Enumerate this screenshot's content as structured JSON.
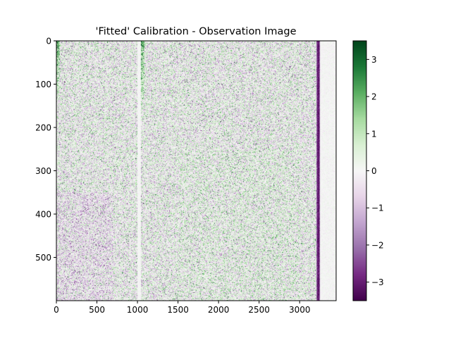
{
  "chart_data": {
    "type": "heatmap",
    "title": "'Fitted' Calibration - Observation Image",
    "xlabel": "",
    "ylabel": "",
    "xlim": [
      0,
      3450
    ],
    "ylim": [
      600,
      0
    ],
    "x_ticks": [
      {
        "value": 0,
        "label": "0"
      },
      {
        "value": 500,
        "label": "500"
      },
      {
        "value": 1000,
        "label": "1000"
      },
      {
        "value": 1500,
        "label": "1500"
      },
      {
        "value": 2000,
        "label": "2000"
      },
      {
        "value": 2500,
        "label": "2500"
      },
      {
        "value": 3000,
        "label": "3000"
      }
    ],
    "y_ticks": [
      {
        "value": 0,
        "label": "0"
      },
      {
        "value": 100,
        "label": "100"
      },
      {
        "value": 200,
        "label": "200"
      },
      {
        "value": 300,
        "label": "300"
      },
      {
        "value": 400,
        "label": "400"
      },
      {
        "value": 500,
        "label": "500"
      }
    ],
    "colormap": "PRGn",
    "colorbar": {
      "vmin": -3.5,
      "vmax": 3.5,
      "ticks": [
        {
          "value": 3,
          "label": "3"
        },
        {
          "value": 2,
          "label": "2"
        },
        {
          "value": 1,
          "label": "1"
        },
        {
          "value": 0,
          "label": "0"
        },
        {
          "value": -1,
          "label": "−1"
        },
        {
          "value": -2,
          "label": "−2"
        },
        {
          "value": -3,
          "label": "−3"
        }
      ]
    },
    "features": [
      {
        "type": "noise_field",
        "x_range": [
          0,
          3210
        ],
        "mean": 0,
        "spread": 0.9
      },
      {
        "type": "positive_edge_band",
        "x_range": [
          0,
          40
        ],
        "y_range": [
          0,
          150
        ],
        "value": 2.5
      },
      {
        "type": "positive_edge_band",
        "x_range": [
          1040,
          1090
        ],
        "y_range": [
          0,
          180
        ],
        "value": 2.5
      },
      {
        "type": "blank_column",
        "x_range": [
          1000,
          1040
        ],
        "value": 0
      },
      {
        "type": "negative_stripe",
        "x_range": [
          3210,
          3250
        ],
        "value": -3.2
      },
      {
        "type": "near_zero_region",
        "x_range": [
          3250,
          3450
        ],
        "value": 0
      }
    ],
    "colors": {
      "low": "#40004b",
      "mid": "#f7f7f7",
      "high": "#00441b"
    }
  }
}
